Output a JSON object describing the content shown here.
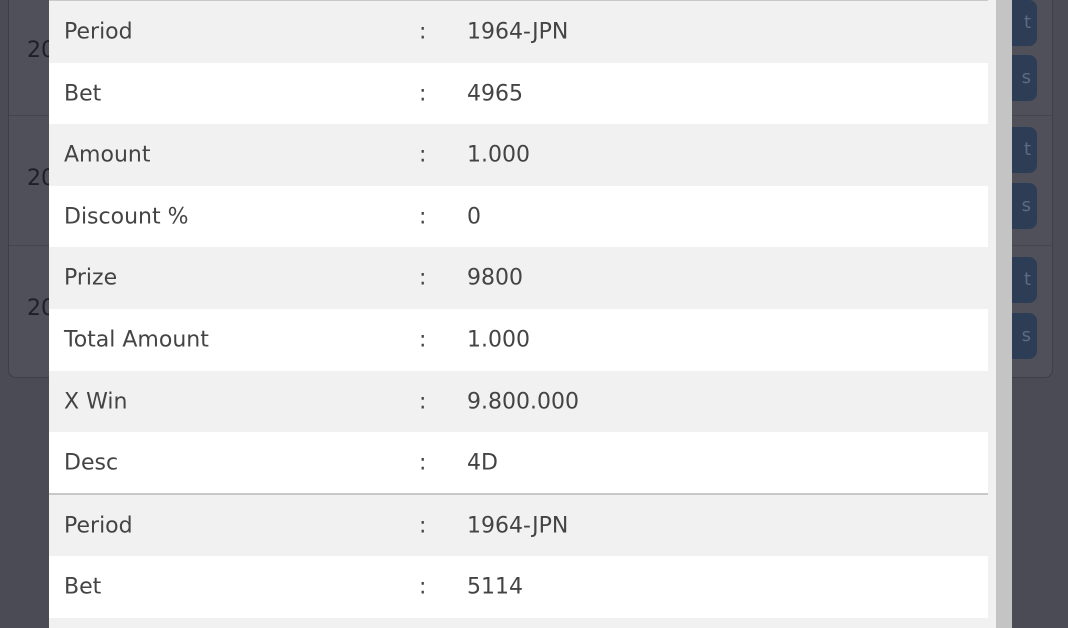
{
  "background": {
    "rows": [
      {
        "date_fragment": "20",
        "button1": "t",
        "button2": "s"
      },
      {
        "date_fragment": "20",
        "button1": "t",
        "button2": "s"
      },
      {
        "date_fragment": "20",
        "button1": "t",
        "button2": "s"
      }
    ]
  },
  "modal": {
    "separator": ":",
    "groups": [
      {
        "rows": [
          {
            "label": "Period",
            "value": "1964-JPN"
          },
          {
            "label": "Bet",
            "value": "4965"
          },
          {
            "label": "Amount",
            "value": "1.000"
          },
          {
            "label": "Discount %",
            "value": "0"
          },
          {
            "label": "Prize",
            "value": "9800"
          },
          {
            "label": "Total Amount",
            "value": "1.000"
          },
          {
            "label": "X Win",
            "value": "9.800.000"
          },
          {
            "label": "Desc",
            "value": "4D"
          }
        ]
      },
      {
        "rows": [
          {
            "label": "Period",
            "value": "1964-JPN"
          },
          {
            "label": "Bet",
            "value": "5114"
          }
        ]
      }
    ]
  }
}
